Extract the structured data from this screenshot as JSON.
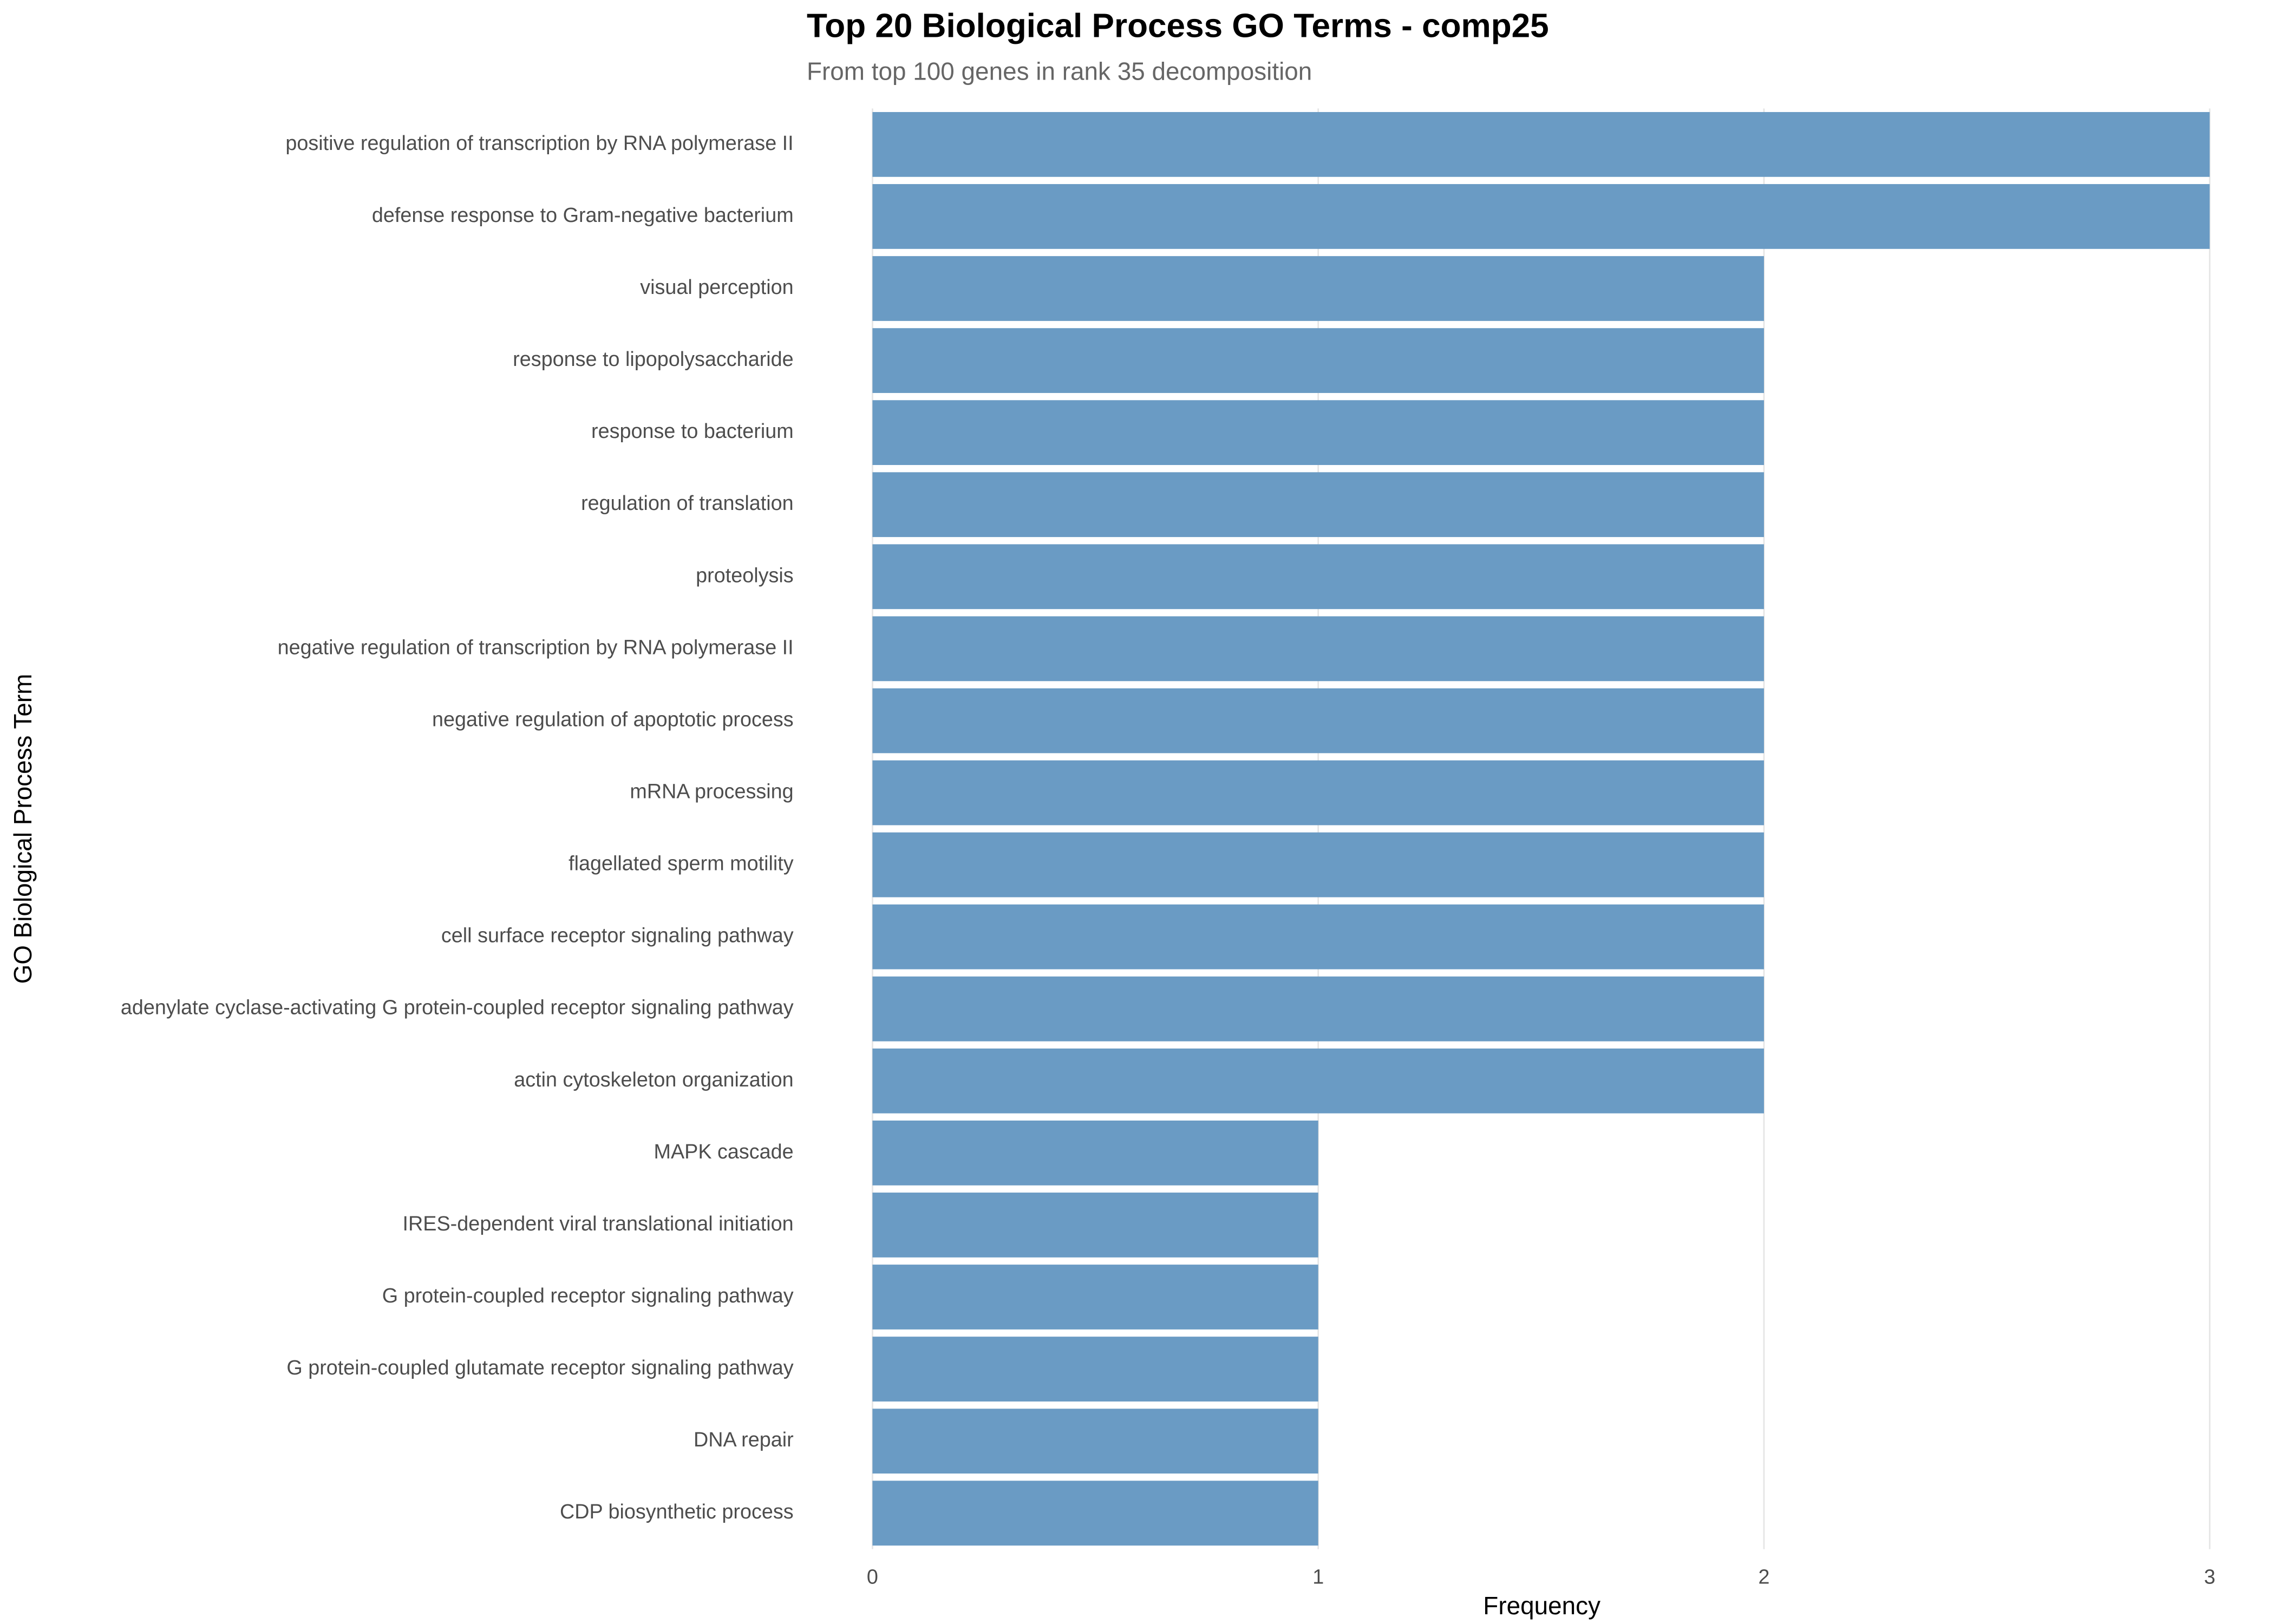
{
  "chart_data": {
    "type": "barh",
    "title": "Top 20 Biological Process GO Terms - comp25",
    "subtitle": "From top 100 genes in rank 35 decomposition",
    "x_label": "Frequency",
    "y_label": "GO Biological Process Term",
    "categories": [
      "positive regulation of transcription by RNA polymerase II",
      "defense response to Gram-negative bacterium",
      "visual perception",
      "response to lipopolysaccharide",
      "response to bacterium",
      "regulation of translation",
      "proteolysis",
      "negative regulation of transcription by RNA polymerase II",
      "negative regulation of apoptotic process",
      "mRNA processing",
      "flagellated sperm motility",
      "cell surface receptor signaling pathway",
      "adenylate cyclase-activating G protein-coupled receptor signaling pathway",
      "actin cytoskeleton organization",
      "MAPK cascade",
      "IRES-dependent viral translational initiation",
      "G protein-coupled receptor signaling pathway",
      "G protein-coupled glutamate receptor signaling pathway",
      "DNA repair",
      "CDP biosynthetic process"
    ],
    "values": [
      3,
      3,
      2,
      2,
      2,
      2,
      2,
      2,
      2,
      2,
      2,
      2,
      2,
      2,
      1,
      1,
      1,
      1,
      1,
      1
    ],
    "color": "#6a9bc4",
    "xlim": [
      0,
      3
    ],
    "xticks": [
      0,
      1,
      2,
      3
    ],
    "grid": true
  }
}
